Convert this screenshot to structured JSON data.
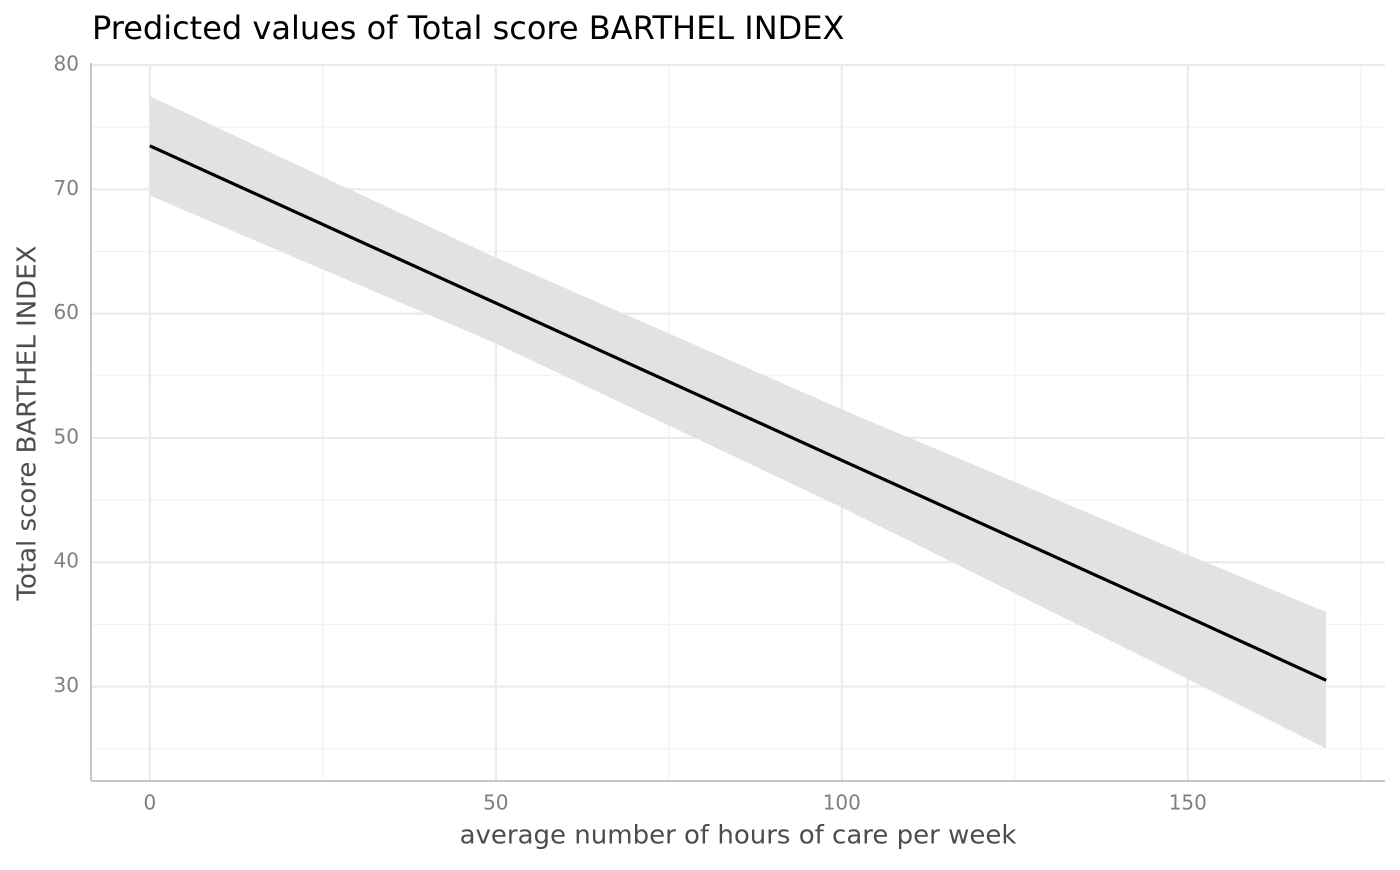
{
  "chart_data": {
    "type": "line",
    "title": "Predicted values of Total score BARTHEL INDEX",
    "xlabel": "average number of hours of care per week",
    "ylabel": "Total score BARTHEL INDEX",
    "x": [
      0,
      50,
      100,
      150,
      170
    ],
    "values": [
      73.5,
      60.85,
      48.2,
      35.6,
      30.5
    ],
    "upper": [
      77.5,
      64.5,
      52.3,
      40.6,
      36
    ],
    "lower": [
      69.5,
      57.6,
      44.4,
      30.6,
      25
    ],
    "color": "#000000",
    "band_color": "#e0e0e0",
    "xlim": [
      -8.5,
      178.5
    ],
    "ylim": [
      22.4,
      80
    ],
    "xticks": [
      0,
      50,
      100,
      150
    ],
    "yticks": [
      30,
      40,
      50,
      60,
      70,
      80
    ],
    "xminorticks": [
      25,
      75,
      125,
      175
    ],
    "yminorticks": [
      25,
      35,
      45,
      55,
      65,
      75
    ],
    "grid": true
  }
}
